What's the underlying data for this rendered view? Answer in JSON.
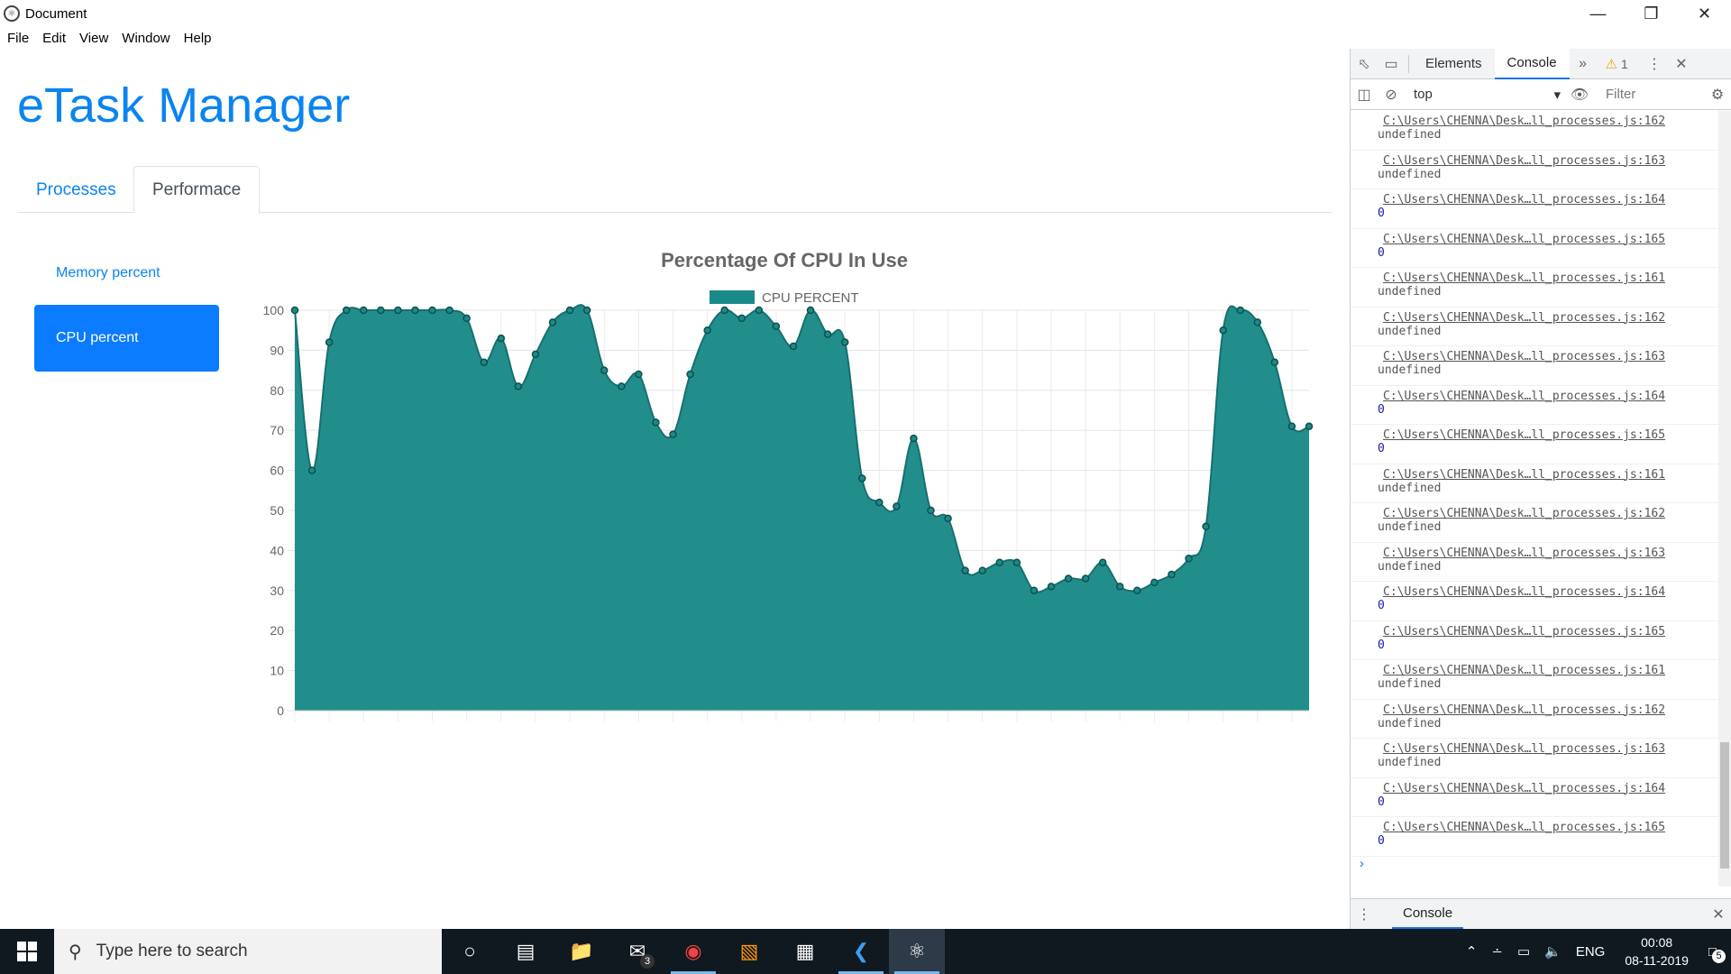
{
  "window": {
    "title": "Document",
    "menu": [
      "File",
      "Edit",
      "View",
      "Window",
      "Help"
    ]
  },
  "app": {
    "title": "eTask Manager",
    "tabs": [
      {
        "label": "Processes",
        "active": false
      },
      {
        "label": "Performace",
        "active": true
      }
    ],
    "pills": [
      {
        "label": "Memory percent",
        "active": false
      },
      {
        "label": "CPU percent",
        "active": true
      }
    ]
  },
  "chart_data": {
    "type": "area",
    "title": "Percentage Of CPU In Use",
    "legend_position": "top",
    "series": [
      {
        "name": "CPU PERCENT",
        "color": "#1a8a88",
        "values": [
          100,
          60,
          92,
          100,
          100,
          100,
          100,
          100,
          100,
          100,
          98,
          87,
          93,
          81,
          89,
          97,
          100,
          100,
          85,
          81,
          84,
          72,
          69,
          84,
          95,
          100,
          98,
          100,
          96,
          91,
          100,
          94,
          92,
          58,
          52,
          51,
          68,
          50,
          48,
          35,
          35,
          37,
          37,
          30,
          31,
          33,
          33,
          37,
          31,
          30,
          32,
          34,
          38,
          46,
          95,
          100,
          97,
          87,
          71,
          71
        ]
      }
    ],
    "ylim": [
      0,
      100
    ],
    "yticks": [
      0,
      10,
      20,
      30,
      40,
      50,
      60,
      70,
      80,
      90,
      100
    ],
    "grid": true
  },
  "devtools": {
    "tabs": [
      "Elements",
      "Console"
    ],
    "active_tab": "Console",
    "warnings": "1",
    "context": "top",
    "filter_placeholder": "Filter",
    "drawer_tab": "Console",
    "logs": [
      {
        "src": "C:\\Users\\CHENNA\\Desk…ll_processes.js:162",
        "val": "undefined",
        "num": false
      },
      {
        "src": "C:\\Users\\CHENNA\\Desk…ll_processes.js:163",
        "val": "undefined",
        "num": false
      },
      {
        "src": "C:\\Users\\CHENNA\\Desk…ll_processes.js:164",
        "val": "0",
        "num": true
      },
      {
        "src": "C:\\Users\\CHENNA\\Desk…ll_processes.js:165",
        "val": "0",
        "num": true
      },
      {
        "src": "C:\\Users\\CHENNA\\Desk…ll_processes.js:161",
        "val": "undefined",
        "num": false
      },
      {
        "src": "C:\\Users\\CHENNA\\Desk…ll_processes.js:162",
        "val": "undefined",
        "num": false
      },
      {
        "src": "C:\\Users\\CHENNA\\Desk…ll_processes.js:163",
        "val": "undefined",
        "num": false
      },
      {
        "src": "C:\\Users\\CHENNA\\Desk…ll_processes.js:164",
        "val": "0",
        "num": true
      },
      {
        "src": "C:\\Users\\CHENNA\\Desk…ll_processes.js:165",
        "val": "0",
        "num": true
      },
      {
        "src": "C:\\Users\\CHENNA\\Desk…ll_processes.js:161",
        "val": "undefined",
        "num": false
      },
      {
        "src": "C:\\Users\\CHENNA\\Desk…ll_processes.js:162",
        "val": "undefined",
        "num": false
      },
      {
        "src": "C:\\Users\\CHENNA\\Desk…ll_processes.js:163",
        "val": "undefined",
        "num": false
      },
      {
        "src": "C:\\Users\\CHENNA\\Desk…ll_processes.js:164",
        "val": "0",
        "num": true
      },
      {
        "src": "C:\\Users\\CHENNA\\Desk…ll_processes.js:165",
        "val": "0",
        "num": true
      },
      {
        "src": "C:\\Users\\CHENNA\\Desk…ll_processes.js:161",
        "val": "undefined",
        "num": false
      },
      {
        "src": "C:\\Users\\CHENNA\\Desk…ll_processes.js:162",
        "val": "undefined",
        "num": false
      },
      {
        "src": "C:\\Users\\CHENNA\\Desk…ll_processes.js:163",
        "val": "undefined",
        "num": false
      },
      {
        "src": "C:\\Users\\CHENNA\\Desk…ll_processes.js:164",
        "val": "0",
        "num": true
      },
      {
        "src": "C:\\Users\\CHENNA\\Desk…ll_processes.js:165",
        "val": "0",
        "num": true
      }
    ]
  },
  "taskbar": {
    "search_placeholder": "Type here to search",
    "mail_badge": "3",
    "language": "ENG",
    "time": "00:08",
    "date": "08-11-2019",
    "notifications": "5"
  }
}
